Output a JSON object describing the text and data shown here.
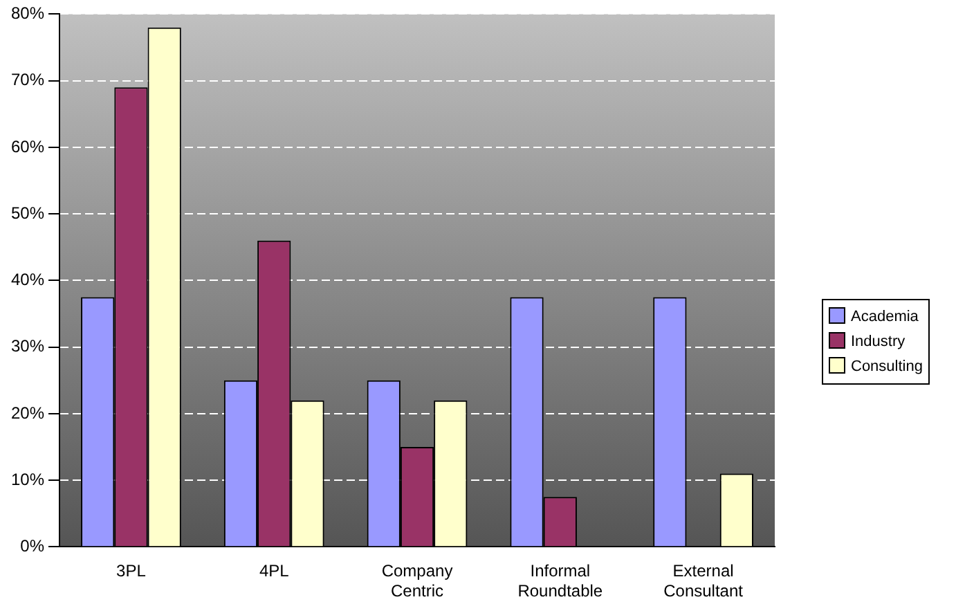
{
  "chart_data": {
    "type": "bar",
    "categories": [
      "3PL",
      "4PL",
      "Company Centric",
      "Informal Roundtable",
      "External Consultant"
    ],
    "series": [
      {
        "name": "Academia",
        "color": "#9999ff",
        "values": [
          37.5,
          25,
          25,
          37.5,
          37.5
        ]
      },
      {
        "name": "Industry",
        "color": "#993366",
        "values": [
          69,
          46,
          15,
          7.5,
          0
        ]
      },
      {
        "name": "Consulting",
        "color": "#ffffcc",
        "values": [
          78,
          22,
          22,
          0,
          11
        ]
      }
    ],
    "ylim": [
      0,
      80
    ],
    "yticks": [
      {
        "value": 0,
        "label": "0%"
      },
      {
        "value": 10,
        "label": "10%"
      },
      {
        "value": 20,
        "label": "20%"
      },
      {
        "value": 30,
        "label": "30%"
      },
      {
        "value": 40,
        "label": "40%"
      },
      {
        "value": 50,
        "label": "50%"
      },
      {
        "value": 60,
        "label": "60%"
      },
      {
        "value": 70,
        "label": "70%"
      },
      {
        "value": 80,
        "label": "80%"
      }
    ],
    "grid": "y",
    "legend": "right"
  }
}
